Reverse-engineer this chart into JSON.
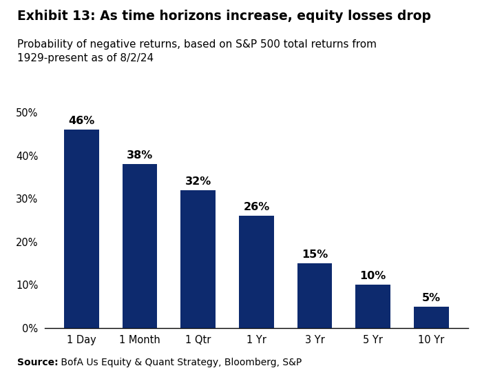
{
  "title_bold": "Exhibit 13: As time horizons increase, equity losses drop",
  "subtitle": "Probability of negative returns, based on S&P 500 total returns from\n1929-present as of 8/2/24",
  "categories": [
    "1 Day",
    "1 Month",
    "1 Qtr",
    "1 Yr",
    "3 Yr",
    "5 Yr",
    "10 Yr"
  ],
  "values": [
    46,
    38,
    32,
    26,
    15,
    10,
    5
  ],
  "bar_color": "#0d2a6e",
  "ylim": [
    0,
    52
  ],
  "yticks": [
    0,
    10,
    20,
    30,
    40,
    50
  ],
  "ytick_labels": [
    "0%",
    "10%",
    "20%",
    "30%",
    "40%",
    "50%"
  ],
  "source_label": "Source:",
  "source_rest": " BofA Us Equity & Quant Strategy, Bloomberg, S&P",
  "background_color": "#ffffff",
  "label_fontsize": 10.5,
  "bar_label_fontsize": 11.5,
  "title_fontsize": 13.5,
  "subtitle_fontsize": 11,
  "source_fontsize": 10
}
